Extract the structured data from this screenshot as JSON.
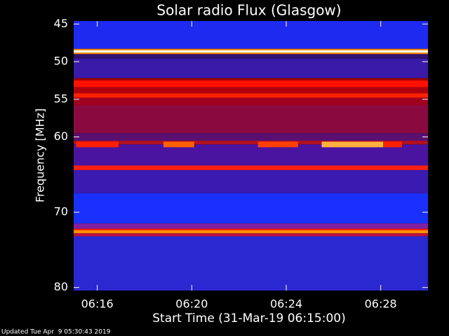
{
  "chart_data": {
    "type": "spectrogram",
    "title": "Solar radio Flux (Glasgow)",
    "x_label": "Start Time (31-Mar-19 06:15:00)",
    "y_label": "Frequency [MHz]",
    "xlim": [
      0,
      15
    ],
    "xticks": [
      {
        "value": 1,
        "label": "06:16"
      },
      {
        "value": 5,
        "label": "06:20"
      },
      {
        "value": 9,
        "label": "06:24"
      },
      {
        "value": 13,
        "label": "06:28"
      }
    ],
    "ylim": [
      44.6,
      80.4
    ],
    "yticks": [
      45,
      50,
      55,
      60,
      70,
      80
    ],
    "y_inverted": true,
    "bands": [
      {
        "from": 44.6,
        "to": 48.3,
        "color": "#1e2af0"
      },
      {
        "from": 48.3,
        "to": 48.5,
        "color": "#ff9000"
      },
      {
        "from": 48.5,
        "to": 48.8,
        "color": "#fffff0"
      },
      {
        "from": 48.8,
        "to": 49.0,
        "color": "#ff9000"
      },
      {
        "from": 49.0,
        "to": 49.6,
        "color": "#301070"
      },
      {
        "from": 49.6,
        "to": 52.2,
        "color": "#3a1aa8"
      },
      {
        "from": 52.2,
        "to": 52.5,
        "color": "#a00000"
      },
      {
        "from": 52.5,
        "to": 53.4,
        "color": "#ff1000"
      },
      {
        "from": 53.4,
        "to": 54.2,
        "color": "#b00010"
      },
      {
        "from": 54.2,
        "to": 54.8,
        "color": "#ff2000"
      },
      {
        "from": 54.8,
        "to": 55.8,
        "color": "#a00020"
      },
      {
        "from": 55.8,
        "to": 59.5,
        "color": "#8a0a40"
      },
      {
        "from": 59.5,
        "to": 60.5,
        "color": "#5a1070"
      },
      {
        "from": 60.5,
        "to": 61.0,
        "color": "#b01020"
      },
      {
        "from": 61.0,
        "to": 63.8,
        "color": "#4a14a0"
      },
      {
        "from": 63.8,
        "to": 64.4,
        "color": "#ff2010"
      },
      {
        "from": 64.4,
        "to": 67.5,
        "color": "#3a1ab0"
      },
      {
        "from": 67.5,
        "to": 71.5,
        "color": "#1a30ff"
      },
      {
        "from": 71.5,
        "to": 72.2,
        "color": "#8020a0"
      },
      {
        "from": 72.2,
        "to": 72.4,
        "color": "#ff2000"
      },
      {
        "from": 72.4,
        "to": 72.8,
        "color": "#ff9000"
      },
      {
        "from": 72.8,
        "to": 73.2,
        "color": "#c01040"
      },
      {
        "from": 73.2,
        "to": 80.4,
        "color": "#2a28d0"
      }
    ],
    "bursts": [
      {
        "from": 0.1,
        "to": 1.9,
        "freq": 61.0,
        "color": "#ff2000"
      },
      {
        "from": 3.8,
        "to": 5.1,
        "freq": 61.0,
        "color": "#ff6000"
      },
      {
        "from": 7.8,
        "to": 9.5,
        "freq": 61.0,
        "color": "#ff4000"
      },
      {
        "from": 10.5,
        "to": 13.1,
        "freq": 61.0,
        "color": "#ffb040"
      },
      {
        "from": 13.1,
        "to": 13.9,
        "freq": 61.0,
        "color": "#ff2000"
      }
    ],
    "footer": "Updated Tue Apr  9 05:30:43 2019"
  }
}
